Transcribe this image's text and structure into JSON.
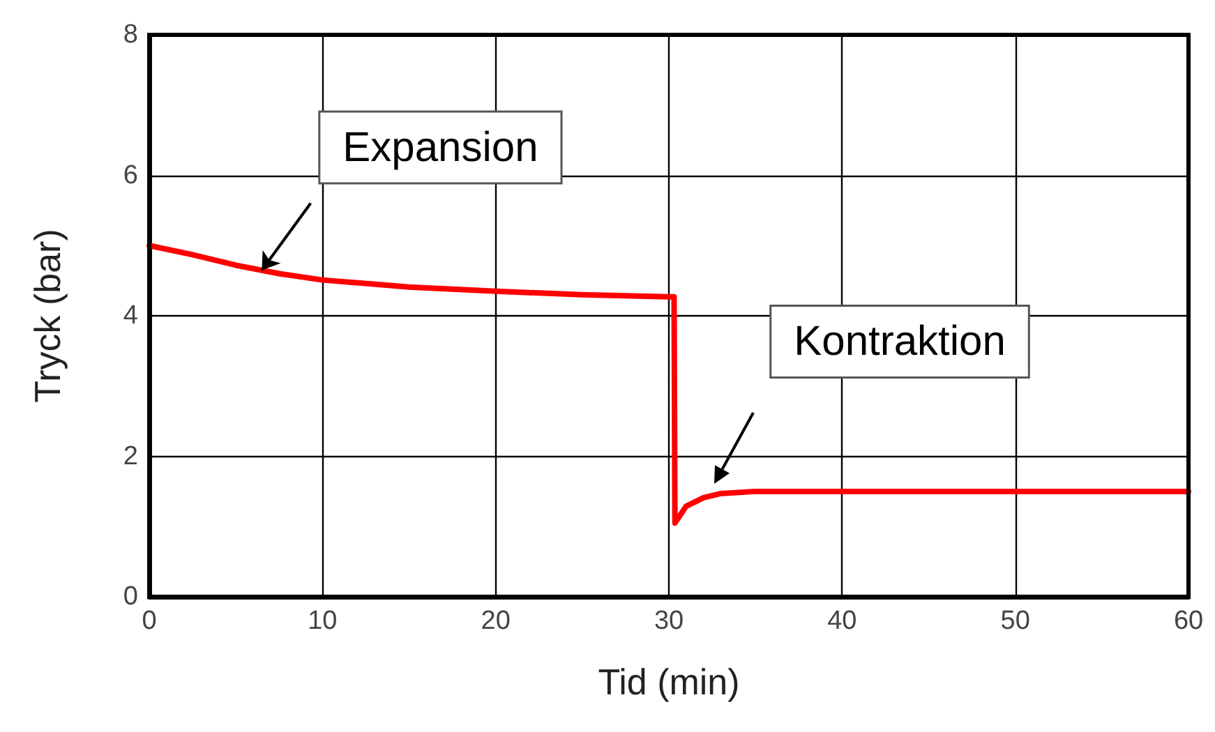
{
  "chart_data": {
    "type": "line",
    "xlabel": "Tid (min)",
    "ylabel": "Tryck (bar)",
    "x": [
      0,
      2.5,
      5,
      7.5,
      10,
      15,
      20,
      25,
      30,
      30.3,
      30.35,
      31,
      32,
      33,
      35,
      40,
      50,
      60
    ],
    "series": [
      {
        "color": "#ff0000",
        "values": [
          5.0,
          4.87,
          4.72,
          4.6,
          4.51,
          4.41,
          4.35,
          4.3,
          4.27,
          4.27,
          1.05,
          1.29,
          1.41,
          1.47,
          1.5,
          1.5,
          1.5,
          1.5
        ]
      }
    ],
    "xlim": [
      0,
      60
    ],
    "xticks": [
      0,
      10,
      20,
      30,
      40,
      50,
      60
    ],
    "ylim": [
      0,
      8
    ],
    "yticks": [
      0,
      2,
      4,
      6,
      8
    ],
    "grid": true,
    "marker": "none",
    "line_style": "solid",
    "annotations": [
      {
        "text": "Expansion",
        "x": 6.5,
        "y": 4.65
      },
      "Kontraktion"
    ]
  }
}
